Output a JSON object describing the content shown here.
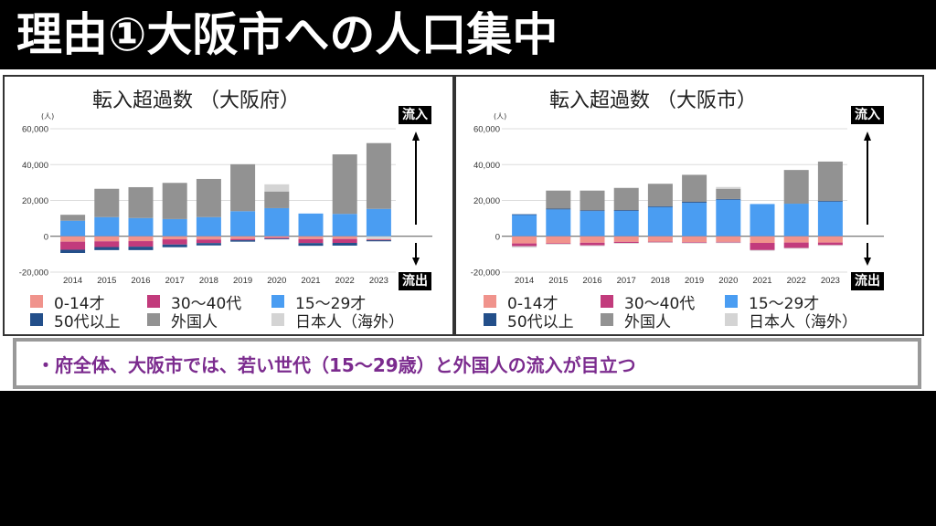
{
  "page": {
    "title": "理由①大阪市への人口集中",
    "note": "・府全体、大阪市では、若い世代（15〜29歳）と外国人の流入が目立つ"
  },
  "flow_labels": {
    "inflow": "流入",
    "outflow": "流出"
  },
  "legend": [
    {
      "key": "age0_14",
      "label": "0-14才",
      "color": "#f0938c"
    },
    {
      "key": "age30_40",
      "label": "30〜40代",
      "color": "#c23b7c"
    },
    {
      "key": "age15_29",
      "label": "15〜29才",
      "color": "#4a9df2"
    },
    {
      "key": "age50plus",
      "label": "50代以上",
      "color": "#234f8a"
    },
    {
      "key": "foreign",
      "label": "外国人",
      "color": "#929292"
    },
    {
      "key": "japanese_abroad",
      "label": "日本人（海外）",
      "color": "#d4d4d4"
    }
  ],
  "chart_data": [
    {
      "type": "bar",
      "stacked": true,
      "title": "転入超過数 （大阪府）",
      "ylabel": "(人)",
      "xlabel": "",
      "ylim": [
        -20000,
        60000
      ],
      "yticks": [
        -20000,
        0,
        20000,
        40000,
        60000
      ],
      "ytick_labels": [
        "-20,000",
        "0",
        "20,000",
        "40,000",
        "60,000"
      ],
      "grid": true,
      "legend_position": "bottom",
      "categories": [
        "2014",
        "2015",
        "2016",
        "2017",
        "2018",
        "2019",
        "2020",
        "2021",
        "2022",
        "2023"
      ],
      "series": [
        {
          "name": "15〜29才",
          "key": "age15_29",
          "values": [
            8700,
            10700,
            10200,
            9600,
            10700,
            14000,
            15700,
            12700,
            12500,
            15300
          ]
        },
        {
          "name": "外国人",
          "key": "foreign",
          "values": [
            3300,
            15800,
            17200,
            20200,
            21300,
            26200,
            9300,
            0,
            33200,
            36700
          ]
        },
        {
          "name": "日本人（海外）",
          "key": "japanese_abroad",
          "values": [
            0,
            0,
            0,
            0,
            0,
            0,
            4000,
            0,
            0,
            -1500
          ]
        },
        {
          "name": "0-14才",
          "key": "age0_14",
          "values": [
            -3000,
            -2800,
            -2700,
            -1700,
            -1800,
            -1500,
            -800,
            -1600,
            -1500,
            -400
          ]
        },
        {
          "name": "30〜40代",
          "key": "age30_40",
          "values": [
            -4500,
            -3200,
            -3100,
            -2900,
            -2000,
            -700,
            -500,
            -2200,
            -2200,
            -300
          ]
        },
        {
          "name": "50代以上",
          "key": "age50plus",
          "values": [
            -1800,
            -1700,
            -1900,
            -1500,
            -1300,
            -800,
            -200,
            -1500,
            -1500,
            -600
          ]
        }
      ]
    },
    {
      "type": "bar",
      "stacked": true,
      "title": "転入超過数 （大阪市）",
      "ylabel": "(人)",
      "xlabel": "",
      "ylim": [
        -20000,
        60000
      ],
      "yticks": [
        -20000,
        0,
        20000,
        40000,
        60000
      ],
      "ytick_labels": [
        "-20,000",
        "0",
        "20,000",
        "40,000",
        "60,000"
      ],
      "grid": true,
      "legend_position": "bottom",
      "categories": [
        "2014",
        "2015",
        "2016",
        "2017",
        "2018",
        "2019",
        "2020",
        "2021",
        "2022",
        "2023"
      ],
      "series": [
        {
          "name": "15〜29才",
          "key": "age15_29",
          "values": [
            12000,
            15000,
            14100,
            14300,
            16300,
            18700,
            20400,
            18000,
            18200,
            19400
          ]
        },
        {
          "name": "50代以上",
          "key": "age50plus",
          "values": [
            300,
            400,
            400,
            300,
            400,
            500,
            400,
            0,
            0,
            300
          ]
        },
        {
          "name": "外国人",
          "key": "foreign",
          "values": [
            0,
            10100,
            11000,
            12400,
            12600,
            15100,
            5700,
            0,
            18800,
            22000
          ]
        },
        {
          "name": "日本人（海外）",
          "key": "japanese_abroad",
          "values": [
            0,
            0,
            0,
            0,
            0,
            0,
            1000,
            0,
            0,
            0
          ]
        },
        {
          "name": "0-14才",
          "key": "age0_14",
          "values": [
            -4000,
            -3900,
            -3600,
            -3100,
            -3000,
            -3300,
            -3100,
            -3700,
            -3500,
            -3500
          ]
        },
        {
          "name": "30〜40代",
          "key": "age30_40",
          "values": [
            -1500,
            -300,
            -1500,
            -600,
            -300,
            -300,
            -300,
            -4000,
            -3000,
            -1400
          ]
        },
        {
          "name": "日本人（海外）負",
          "key": "japanese_abroad_neg",
          "values": [
            -800,
            -300,
            -300,
            -300,
            -200,
            -200,
            -200,
            -400,
            -300,
            -300
          ]
        }
      ]
    }
  ]
}
